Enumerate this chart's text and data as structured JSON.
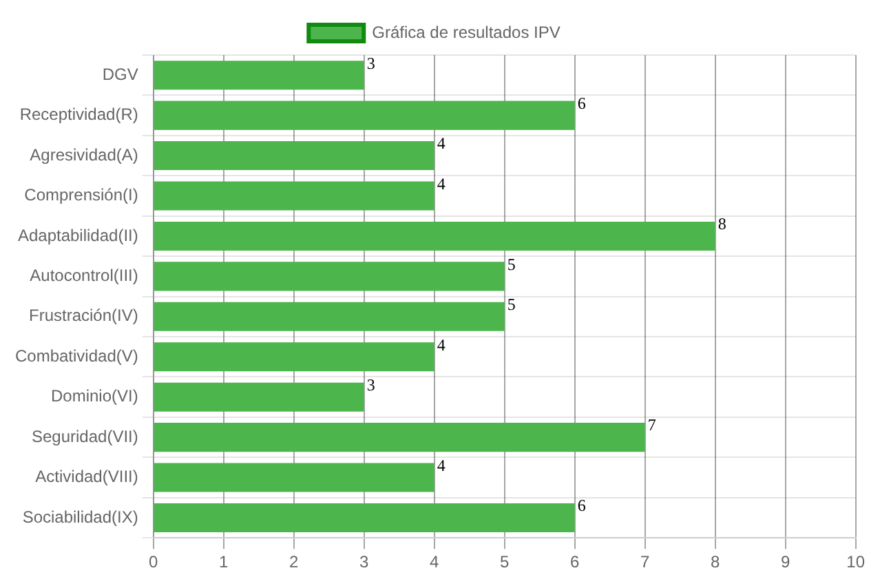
{
  "chart_data": {
    "type": "bar",
    "orientation": "horizontal",
    "categories": [
      "DGV",
      "Receptividad(R)",
      "Agresividad(A)",
      "Comprensión(I)",
      "Adaptabilidad(II)",
      "Autocontrol(III)",
      "Frustración(IV)",
      "Combatividad(V)",
      "Dominio(VI)",
      "Seguridad(VII)",
      "Actividad(VIII)",
      "Sociabilidad(IX)"
    ],
    "series": [
      {
        "name": "Gráfica de resultados IPV",
        "color": "#4cb54c",
        "values": [
          3,
          6,
          4,
          4,
          8,
          5,
          5,
          4,
          3,
          7,
          4,
          6
        ]
      }
    ],
    "xlim": [
      0,
      10
    ],
    "xticks": [
      0,
      1,
      2,
      3,
      4,
      5,
      6,
      7,
      8,
      9,
      10
    ],
    "grid": true,
    "legend": "top",
    "data_labels": true
  }
}
